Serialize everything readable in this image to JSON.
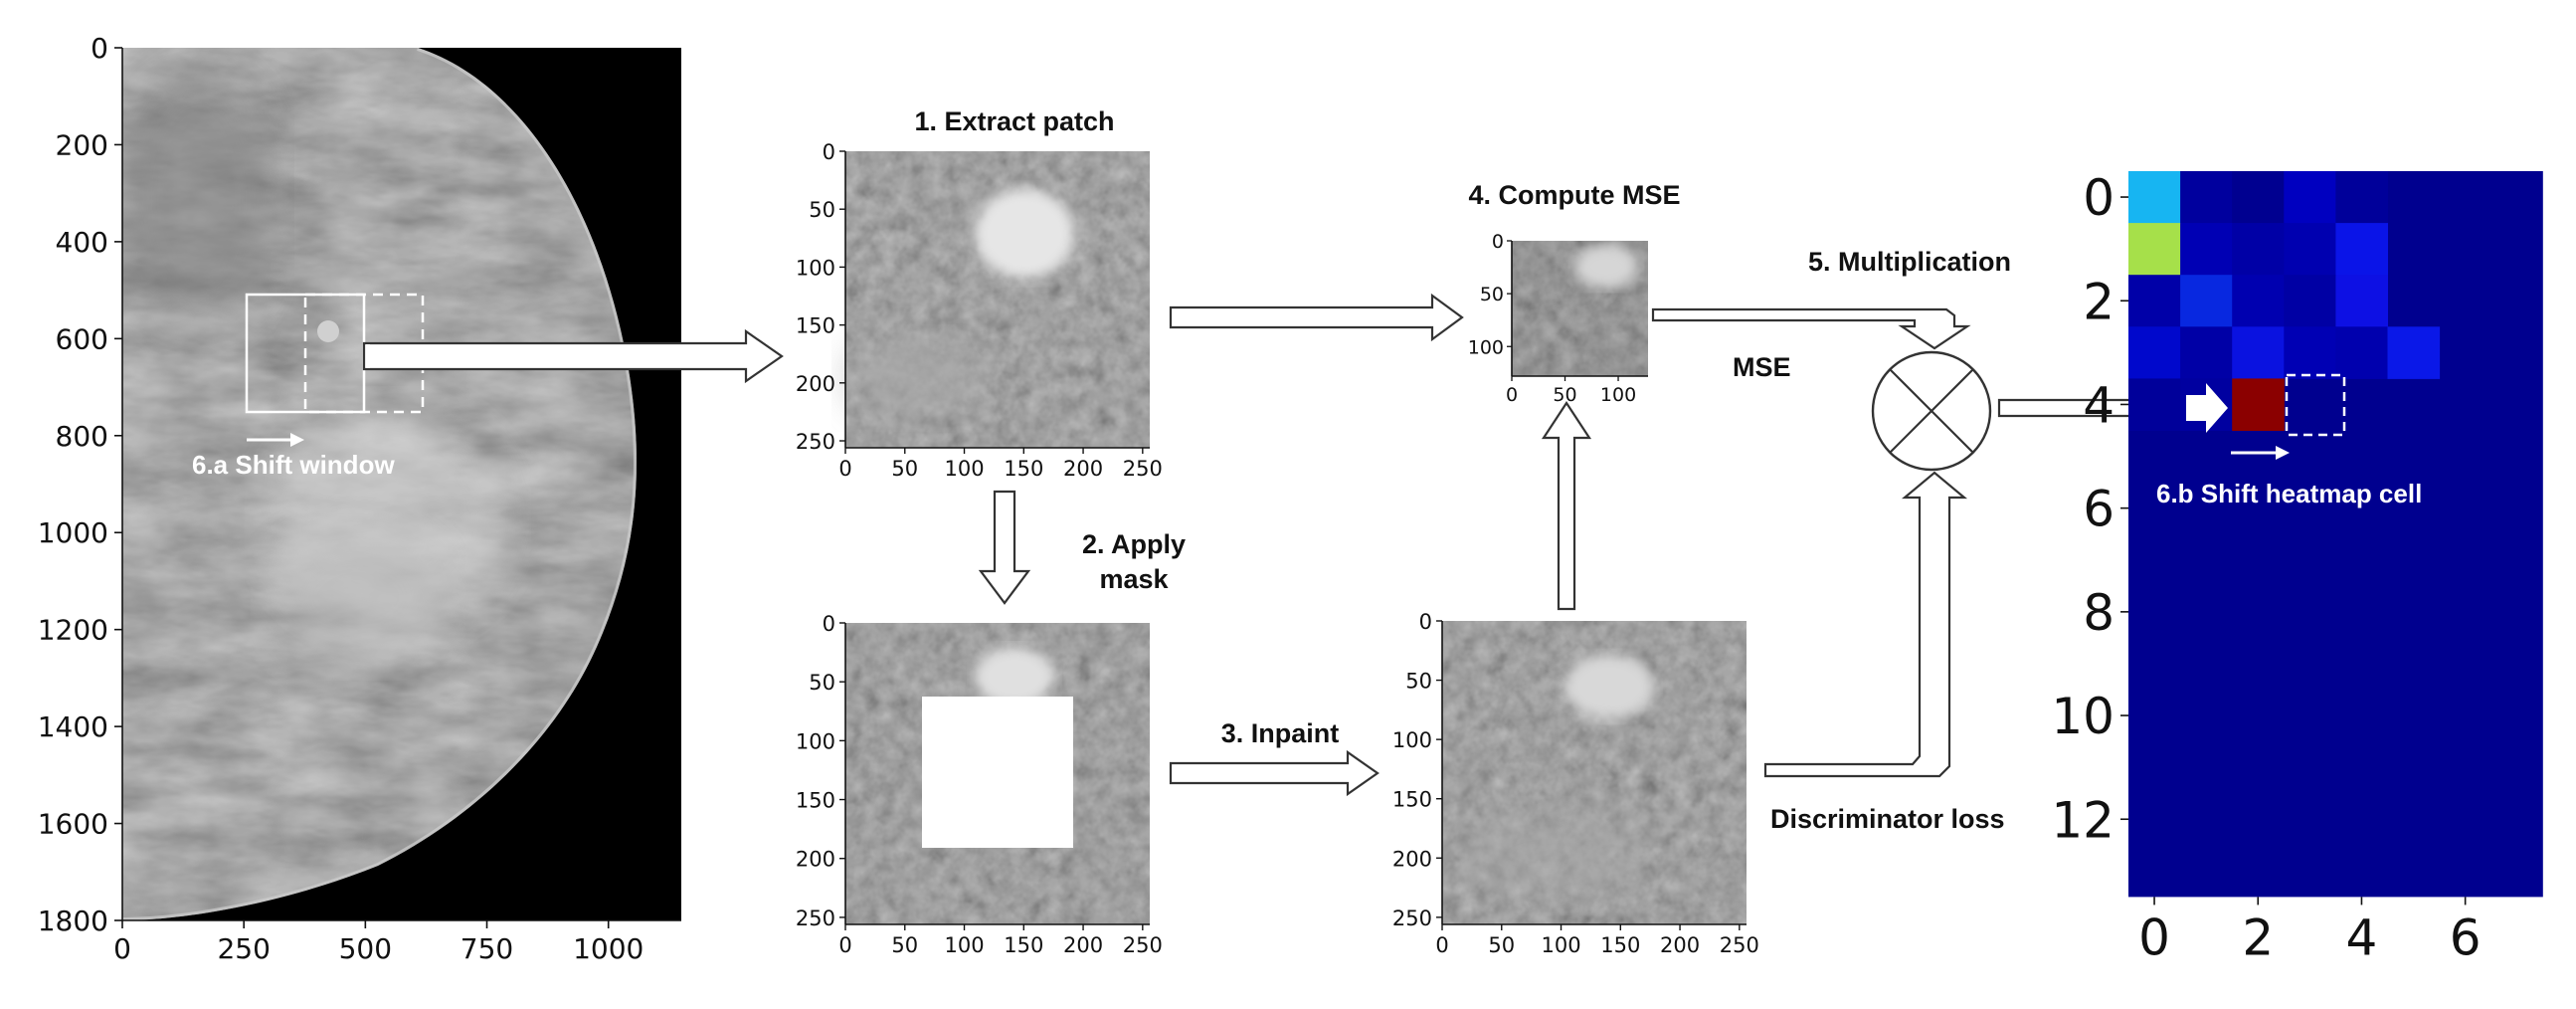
{
  "steps": {
    "extract": "1. Extract patch",
    "mask_line1": "2. Apply",
    "mask_line2": "mask",
    "inpaint": "3. Inpaint",
    "mse": "4. Compute MSE",
    "multiply": "5. Multiplication",
    "shift_window": "6.a Shift window",
    "shift_heatmap": "6.b Shift heatmap cell"
  },
  "labels": {
    "mse_input": "MSE",
    "disc_input": "Discriminator loss"
  },
  "mammogram": {
    "yticks": [
      "0",
      "200",
      "400",
      "600",
      "800",
      "1000",
      "1200",
      "1400",
      "1600",
      "1800"
    ],
    "xticks": [
      "0",
      "250",
      "500",
      "750",
      "1000"
    ]
  },
  "patch": {
    "xticks": [
      "0",
      "50",
      "100",
      "150",
      "200",
      "250"
    ],
    "yticks": [
      "0",
      "50",
      "100",
      "150",
      "200",
      "250"
    ]
  },
  "mse_map": {
    "xticks": [
      "0",
      "50",
      "100"
    ],
    "yticks": [
      "0",
      "50",
      "100"
    ]
  },
  "heatmap": {
    "xticks": [
      "0",
      "2",
      "4",
      "6"
    ],
    "yticks": [
      "0",
      "2",
      "4",
      "6",
      "8",
      "10",
      "12"
    ],
    "background_color": "#00008f",
    "highlight_color": "#8b0000"
  }
}
